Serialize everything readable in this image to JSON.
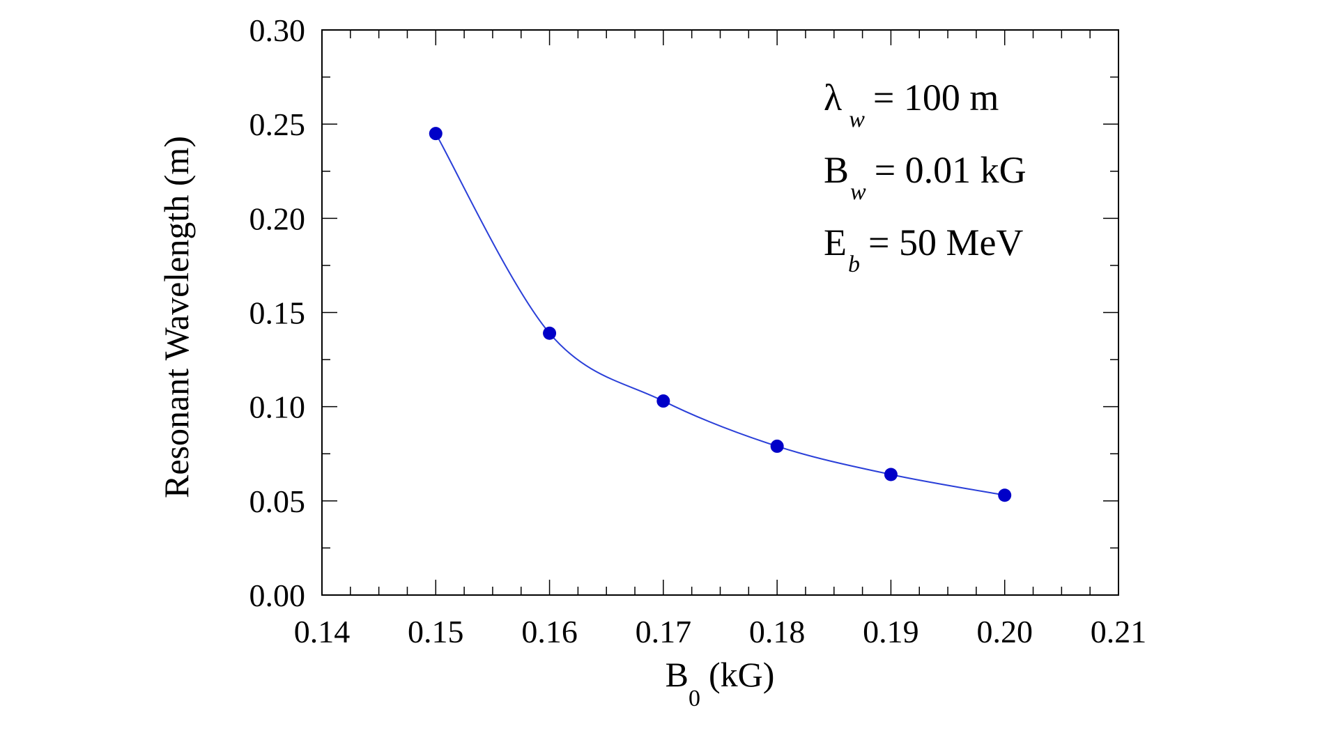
{
  "chart_data": {
    "type": "scatter",
    "title": "",
    "xlabel": "B",
    "xlabel_subscript": "0",
    "xlabel_suffix": "(kG)",
    "ylabel": "Resonant Wavelength (m)",
    "xlim": [
      0.14,
      0.21
    ],
    "ylim": [
      0.0,
      0.3
    ],
    "x_ticks": [
      "0.14",
      "0.15",
      "0.16",
      "0.17",
      "0.18",
      "0.19",
      "0.20",
      "0.21"
    ],
    "y_ticks": [
      "0.00",
      "0.05",
      "0.10",
      "0.15",
      "0.20",
      "0.25",
      "0.30"
    ],
    "grid": false,
    "series": [
      {
        "name": "Resonant Wavelength",
        "x": [
          0.15,
          0.16,
          0.17,
          0.18,
          0.19,
          0.2
        ],
        "y": [
          0.245,
          0.139,
          0.103,
          0.079,
          0.064,
          0.053
        ],
        "marker_color": "#0000c8",
        "line_color": "#2a3fd8"
      }
    ],
    "annotations": [
      {
        "main": "λ",
        "sub": "w",
        "rest": "= 100 m"
      },
      {
        "main": "B",
        "sub": "w",
        "rest": "= 0.01 kG"
      },
      {
        "main": "E",
        "sub": "b",
        "rest": "= 50 MeV"
      }
    ]
  }
}
